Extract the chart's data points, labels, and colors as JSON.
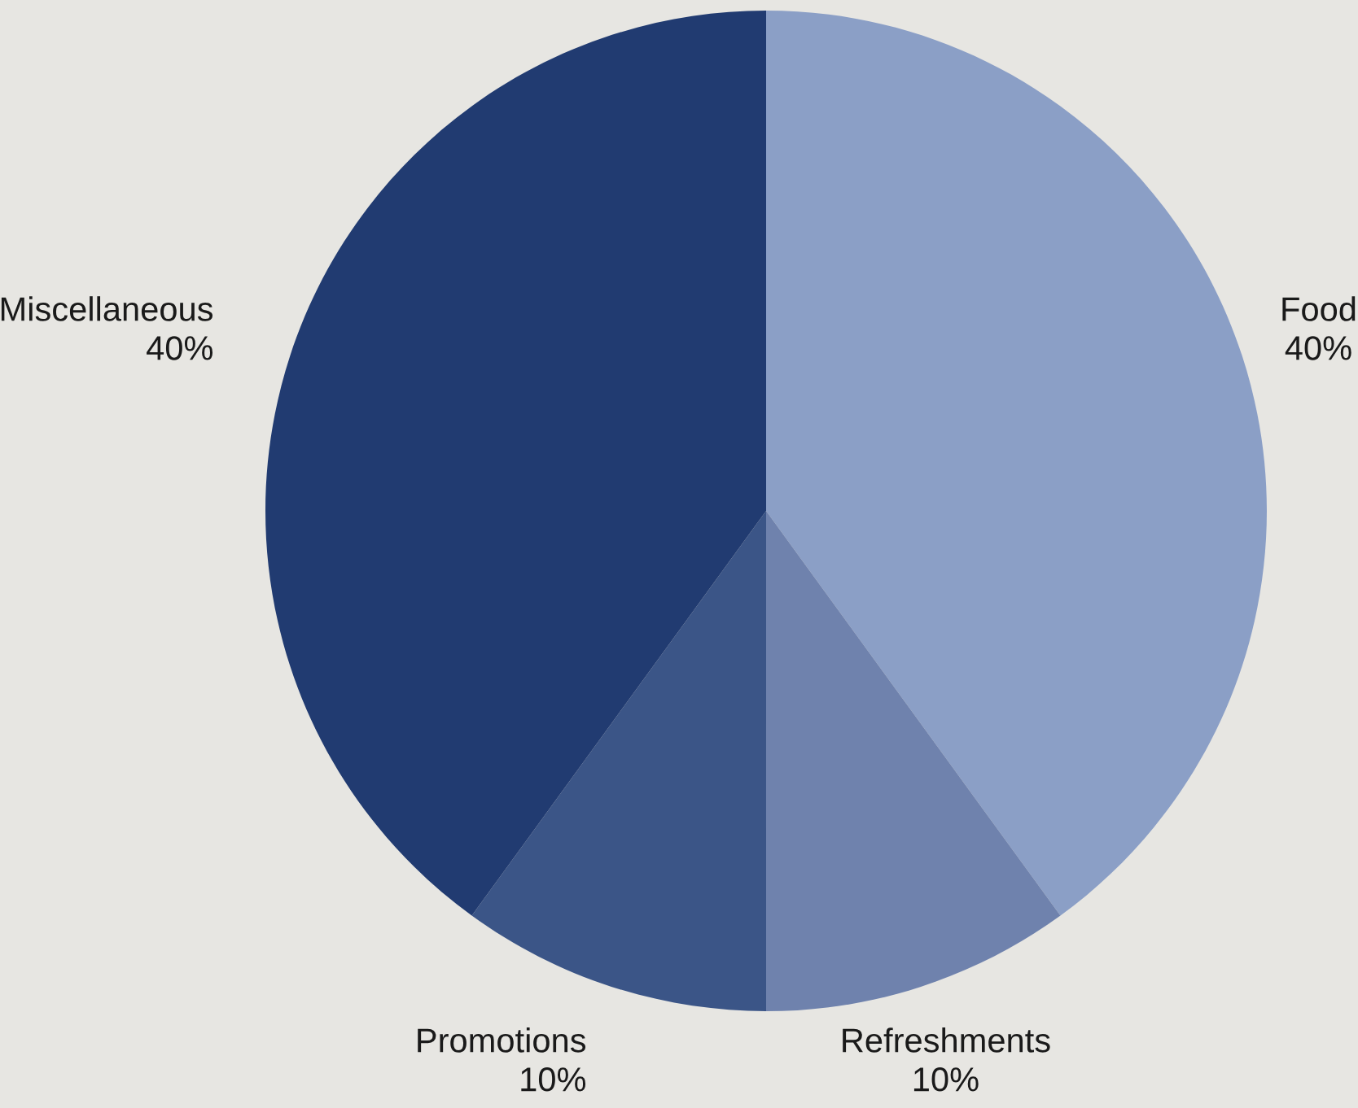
{
  "chart_data": {
    "type": "pie",
    "categories": [
      "Food",
      "Refreshments",
      "Promotions",
      "Miscellaneous"
    ],
    "values": [
      40,
      10,
      10,
      40
    ],
    "value_labels": [
      "40%",
      "10%",
      "10%",
      "40%"
    ],
    "colors": [
      "#8b9fc6",
      "#6f82ad",
      "#3b5587",
      "#213b71"
    ]
  }
}
